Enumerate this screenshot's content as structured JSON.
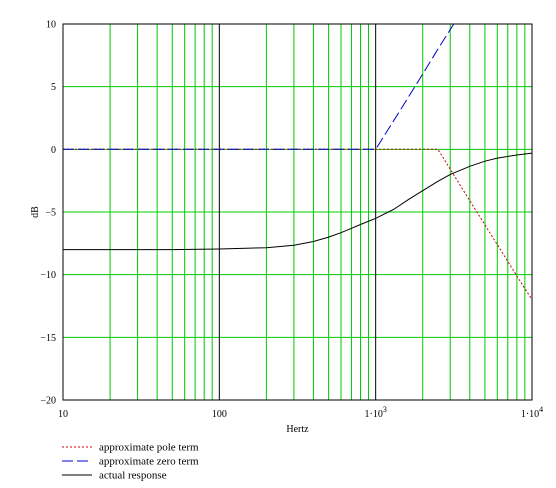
{
  "chart_data": {
    "type": "line",
    "xlabel": "Hertz",
    "ylabel": "dB",
    "xscale": "log",
    "xlim": [
      10,
      10000
    ],
    "ylim": [
      -20,
      10
    ],
    "grid": true,
    "grid_color": "#00cc00",
    "x_ticks": [
      {
        "value": 10,
        "base": "10",
        "exp": ""
      },
      {
        "value": 100,
        "base": "100",
        "exp": ""
      },
      {
        "value": 1000,
        "base": "1·10",
        "exp": "3"
      },
      {
        "value": 10000,
        "base": "1·10",
        "exp": "4"
      }
    ],
    "y_ticks": [
      {
        "value": 10,
        "label": "10"
      },
      {
        "value": 5,
        "label": "5"
      },
      {
        "value": 0,
        "label": "0"
      },
      {
        "value": -5,
        "label": "−5"
      },
      {
        "value": -10,
        "label": "−10"
      },
      {
        "value": -15,
        "label": "−15"
      },
      {
        "value": -20,
        "label": "−20"
      }
    ],
    "legend_position": "bottom-left",
    "series": [
      {
        "name": "approximate pole term",
        "color": "#cc0000",
        "dash": "dotted",
        "points": [
          [
            10,
            0
          ],
          [
            2500,
            0
          ],
          [
            4000,
            -4.1
          ],
          [
            6000,
            -7.6
          ],
          [
            8000,
            -10.1
          ],
          [
            10000,
            -12
          ]
        ]
      },
      {
        "name": "approximate zero term",
        "color": "#0000cc",
        "dash": "dashed",
        "points": [
          [
            10,
            0
          ],
          [
            1000,
            0
          ],
          [
            1500,
            3.5
          ],
          [
            2000,
            6.0
          ],
          [
            2500,
            8.0
          ],
          [
            3160,
            10
          ]
        ]
      },
      {
        "name": "actual response",
        "color": "#000000",
        "dash": "solid",
        "points": [
          [
            10,
            -8
          ],
          [
            50,
            -8
          ],
          [
            100,
            -7.95
          ],
          [
            200,
            -7.85
          ],
          [
            300,
            -7.65
          ],
          [
            400,
            -7.35
          ],
          [
            500,
            -7.0
          ],
          [
            600,
            -6.65
          ],
          [
            700,
            -6.3
          ],
          [
            800,
            -6.0
          ],
          [
            1000,
            -5.5
          ],
          [
            1300,
            -4.8
          ],
          [
            1600,
            -4.05
          ],
          [
            2000,
            -3.3
          ],
          [
            2500,
            -2.55
          ],
          [
            3000,
            -2.0
          ],
          [
            4000,
            -1.35
          ],
          [
            5000,
            -0.95
          ],
          [
            6000,
            -0.7
          ],
          [
            8000,
            -0.45
          ],
          [
            10000,
            -0.3
          ]
        ]
      }
    ]
  }
}
